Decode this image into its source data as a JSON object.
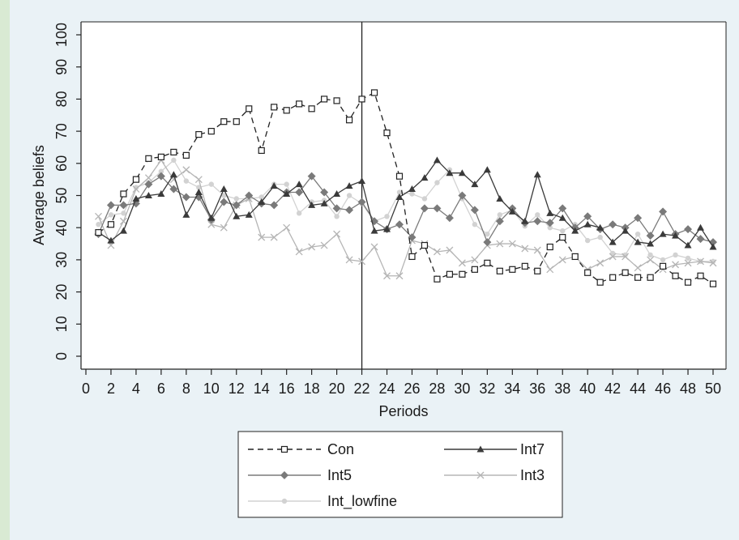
{
  "chart_data": {
    "type": "line",
    "xlabel": "Periods",
    "ylabel": "Average beliefs",
    "xlim": [
      0,
      51
    ],
    "ylim": [
      0,
      100
    ],
    "xticks": [
      0,
      2,
      4,
      6,
      8,
      10,
      12,
      14,
      16,
      18,
      20,
      22,
      24,
      26,
      28,
      30,
      32,
      34,
      36,
      38,
      40,
      42,
      44,
      46,
      48,
      50
    ],
    "yticks": [
      0,
      10,
      20,
      30,
      40,
      50,
      60,
      70,
      80,
      90,
      100
    ],
    "vline": 22,
    "grid": false,
    "legend_position": "bottom",
    "x": [
      1,
      2,
      3,
      4,
      5,
      6,
      7,
      8,
      9,
      10,
      11,
      12,
      13,
      14,
      15,
      16,
      17,
      18,
      19,
      20,
      21,
      22,
      23,
      24,
      25,
      26,
      27,
      28,
      29,
      30,
      31,
      32,
      33,
      34,
      35,
      36,
      37,
      38,
      39,
      40,
      41,
      42,
      43,
      44,
      45,
      46,
      47,
      48,
      49,
      50
    ],
    "series": [
      {
        "name": "Con",
        "color": "#222222",
        "style": "dashed",
        "marker": "square",
        "values": [
          38.5,
          41,
          50.5,
          55,
          61.5,
          62,
          63.5,
          62.5,
          69,
          70,
          73,
          73,
          77,
          64,
          77.5,
          76.5,
          78.5,
          77,
          80,
          79.5,
          73.5,
          80,
          82,
          69.5,
          56,
          31,
          34.5,
          24,
          25.5,
          25.5,
          27,
          29,
          26.5,
          27,
          28,
          26.5,
          34,
          37,
          31,
          26,
          23,
          24.5,
          26,
          24.5,
          24.5,
          28,
          25,
          23,
          25,
          22.5
        ]
      },
      {
        "name": "Int7",
        "color": "#3a3a3a",
        "style": "solid",
        "marker": "triangle",
        "values": [
          38.5,
          36,
          39,
          49,
          50,
          50.5,
          56.5,
          44,
          51,
          43,
          52,
          43.5,
          44,
          48,
          53,
          50.5,
          53.5,
          47,
          47.5,
          50.5,
          53,
          54.5,
          39,
          39.5,
          49.5,
          52,
          55.5,
          61,
          57,
          57,
          53.5,
          58,
          49,
          45,
          42,
          56.5,
          44.5,
          43,
          39,
          41,
          40,
          35.5,
          39,
          35.5,
          35,
          38,
          37.5,
          34.5,
          40,
          34
        ]
      },
      {
        "name": "Int5",
        "color": "#7a7a7a",
        "style": "solid",
        "marker": "diamond",
        "values": [
          38,
          47,
          47,
          47.5,
          53.5,
          56,
          52,
          49.5,
          49.5,
          42.5,
          48,
          47,
          50,
          47.5,
          47,
          51,
          51,
          56,
          51,
          46,
          45.5,
          48,
          42,
          39.5,
          41,
          37,
          46,
          46,
          43,
          50,
          45.5,
          35.5,
          42,
          46,
          41.5,
          42,
          41.5,
          46,
          40,
          43.5,
          39.5,
          41,
          40,
          43,
          37.5,
          45,
          38,
          39.5,
          36.5,
          35.5
        ]
      },
      {
        "name": "Int3",
        "color": "#b5b5b5",
        "style": "solid",
        "marker": "x",
        "values": [
          43.5,
          34.5,
          42,
          52,
          55.5,
          61,
          55,
          58,
          55,
          41,
          40,
          47,
          49,
          37,
          37,
          40,
          32.5,
          34,
          34.5,
          38,
          30,
          29.5,
          34,
          25,
          25,
          36,
          35,
          32.5,
          33,
          29,
          30,
          34.5,
          35,
          35,
          33.5,
          33,
          27,
          30,
          31,
          27,
          29,
          31,
          31,
          27.5,
          30,
          27,
          28.5,
          29,
          29.5,
          29
        ]
      },
      {
        "name": "Int_lowfine",
        "color": "#d2d2d2",
        "style": "solid",
        "marker": "dot",
        "values": [
          41,
          44,
          44.5,
          52.5,
          54,
          57.5,
          61,
          54.5,
          52.5,
          53.5,
          50,
          49,
          49,
          49.5,
          53.5,
          53.5,
          44.5,
          48,
          48.5,
          43.5,
          50,
          47.5,
          42,
          43.5,
          51,
          50.5,
          49,
          54,
          58,
          49,
          41,
          38,
          44,
          45.5,
          40.5,
          44,
          40,
          39,
          41,
          36,
          37,
          32,
          31.5,
          38,
          31.5,
          30,
          31.5,
          30.5,
          29.5,
          29.5
        ]
      }
    ]
  }
}
